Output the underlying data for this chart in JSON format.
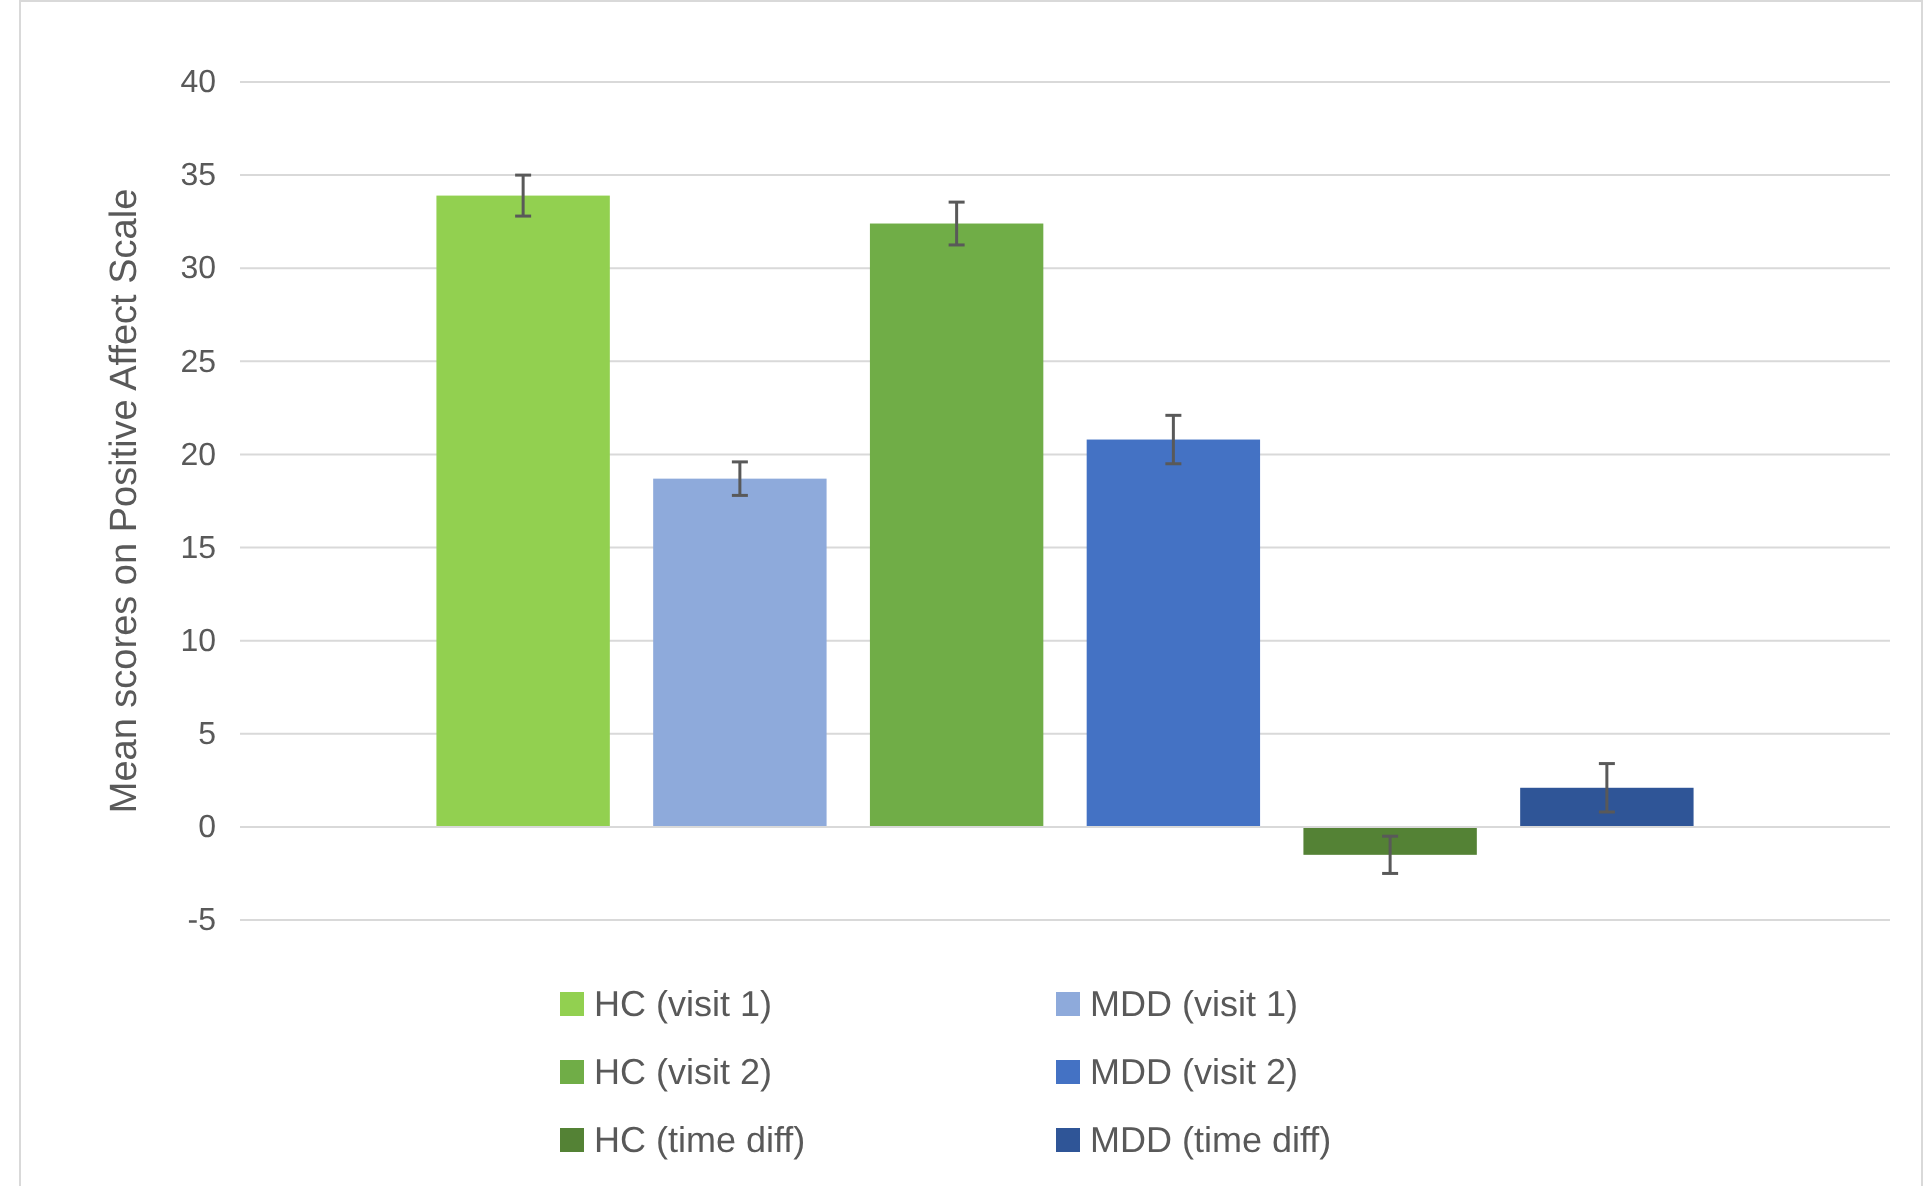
{
  "chart_data": {
    "type": "bar",
    "ylabel": "Mean scores on Positive Affect Scale",
    "categories": [
      null
    ],
    "series": [
      {
        "name": "HC (visit 1)",
        "color": "#92d050",
        "values": [
          33.9
        ],
        "errors": [
          1.1
        ]
      },
      {
        "name": "MDD (visit 1)",
        "color": "#8eaadb",
        "values": [
          18.7
        ],
        "errors": [
          0.9
        ]
      },
      {
        "name": "HC (visit 2)",
        "color": "#70ad47",
        "values": [
          32.4
        ],
        "errors": [
          1.15
        ]
      },
      {
        "name": "MDD (visit 2)",
        "color": "#4472c4",
        "values": [
          20.8
        ],
        "errors": [
          1.3
        ]
      },
      {
        "name": "HC (time diff)",
        "color": "#548235",
        "values": [
          -1.5
        ],
        "errors": [
          1.0
        ]
      },
      {
        "name": "MDD (time diff)",
        "color": "#2f5597",
        "values": [
          2.1
        ],
        "errors": [
          1.3
        ]
      }
    ],
    "ylim": [
      -5,
      40
    ],
    "yticks": [
      -5,
      0,
      5,
      10,
      15,
      20,
      25,
      30,
      35,
      40
    ],
    "grid": "y",
    "legend": "bottom"
  }
}
